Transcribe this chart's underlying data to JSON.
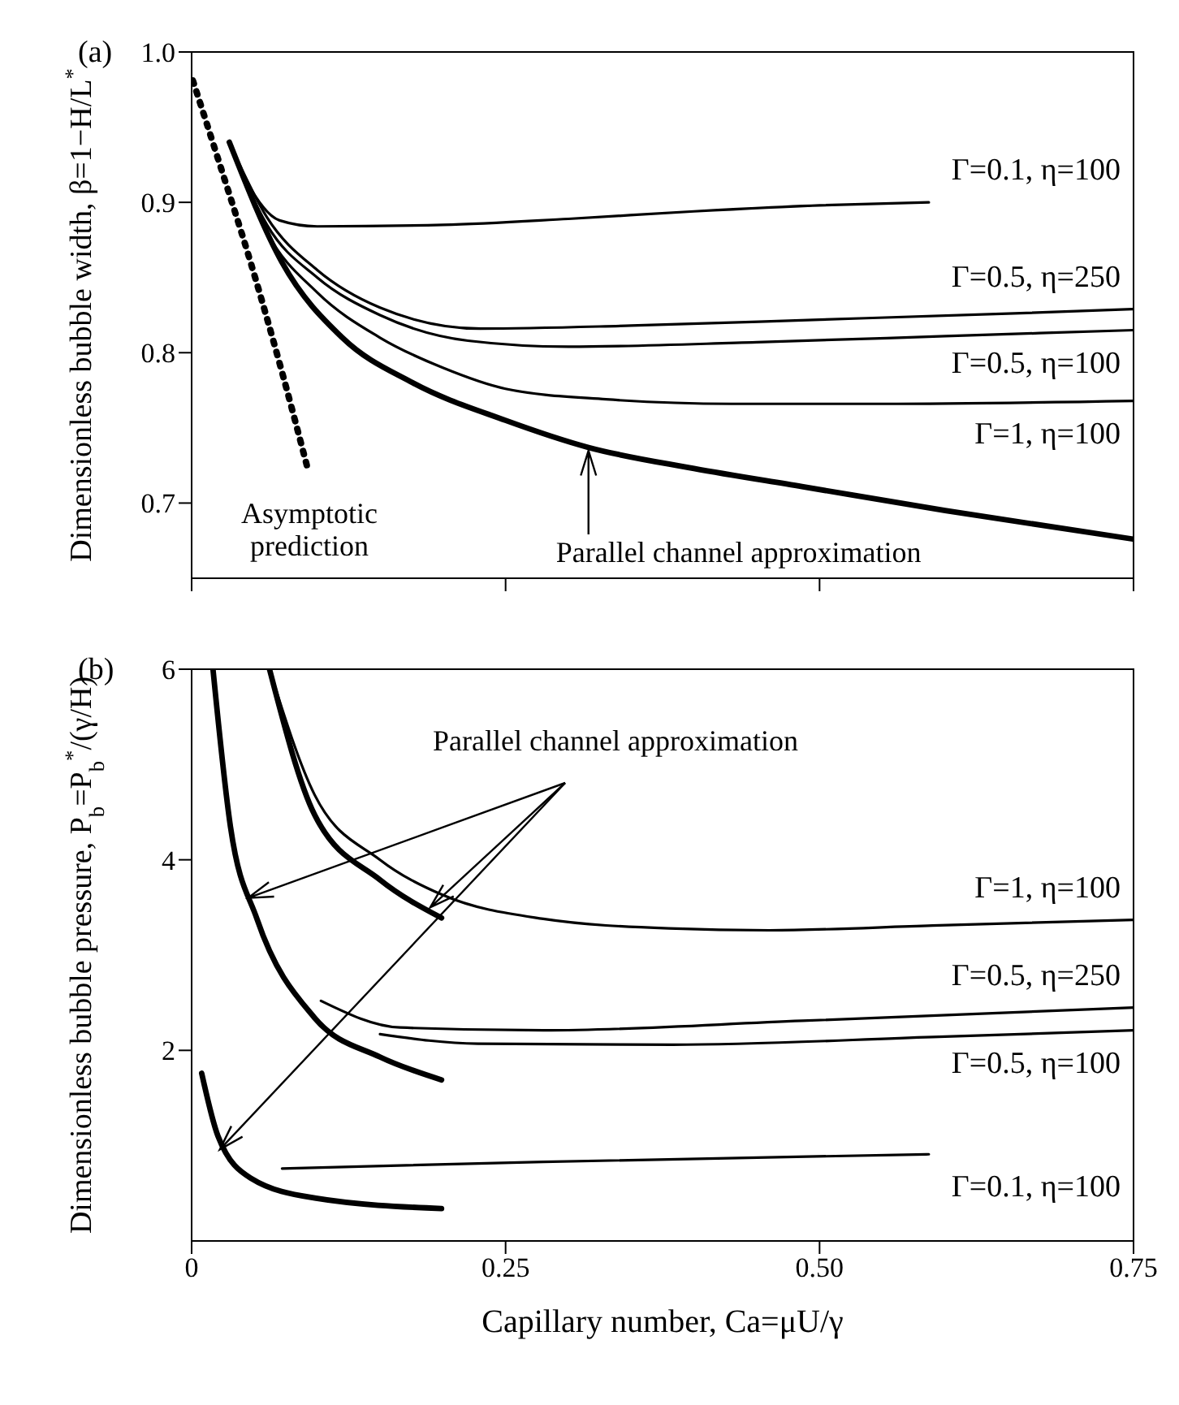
{
  "chart_data": [
    {
      "type": "line",
      "title": "(a)",
      "ylabel": "Dimensionless bubble width, β=1−H/L$^{*}$",
      "xlim": [
        0,
        0.75
      ],
      "xticks": [
        0,
        0.25,
        0.5,
        0.75
      ],
      "ylim": [
        0.65,
        1.0
      ],
      "yticks": [
        0.7,
        0.8,
        0.9,
        {
          "value": 1,
          "label": "1.0"
        }
      ],
      "tick_labels": "y",
      "marker": "none",
      "annotations": [
        "Asymptotic prediction",
        {
          "text": "Parallel channel approximation",
          "x": 0.316,
          "y": 0.737
        }
      ],
      "series": [
        {
          "name": "Γ=0.1, η=100",
          "color": "#000000",
          "x": [
            0.03,
            0.05,
            0.07,
            0.1,
            0.2,
            0.3,
            0.4,
            0.5,
            0.587
          ],
          "values": [
            0.94,
            0.905,
            0.888,
            0.884,
            0.885,
            0.889,
            0.894,
            0.898,
            0.9
          ]
        },
        {
          "name": "Γ=0.5, η=250",
          "color": "#000000",
          "x": [
            0.03,
            0.06,
            0.1,
            0.15,
            0.23,
            0.35,
            0.5,
            0.65,
            0.75
          ],
          "values": [
            0.94,
            0.89,
            0.855,
            0.83,
            0.816,
            0.818,
            0.822,
            0.826,
            0.829
          ]
        },
        {
          "name": "Γ=0.5, η=100",
          "color": "#000000",
          "x": [
            0.03,
            0.06,
            0.1,
            0.15,
            0.22,
            0.3,
            0.45,
            0.6,
            0.75
          ],
          "values": [
            0.94,
            0.885,
            0.85,
            0.825,
            0.808,
            0.804,
            0.807,
            0.811,
            0.815
          ]
        },
        {
          "name": "Γ=1, η=100",
          "color": "#000000",
          "x": [
            0.03,
            0.06,
            0.1,
            0.15,
            0.2,
            0.25,
            0.33,
            0.43,
            0.55,
            0.75
          ],
          "values": [
            0.94,
            0.88,
            0.84,
            0.81,
            0.79,
            0.776,
            0.769,
            0.766,
            0.766,
            0.768
          ]
        },
        {
          "color": "#000000",
          "x": [
            0.03,
            0.072,
            0.12,
            0.176,
            0.25,
            0.316,
            0.4,
            0.486,
            0.6,
            0.75
          ],
          "values": [
            0.94,
            0.86,
            0.81,
            0.78,
            0.755,
            0.737,
            0.723,
            0.711,
            0.695,
            0.676
          ]
        },
        {
          "color": "#000000",
          "line_style": "dotted",
          "x": [
            0.001,
            0.021,
            0.047,
            0.072,
            0.093
          ],
          "values": [
            0.981,
            0.929,
            0.86,
            0.787,
            0.721
          ]
        }
      ]
    },
    {
      "type": "line",
      "title": "(b)",
      "xlabel": "Capillary number, Ca=μU/γ",
      "ylabel": "Dimensionless bubble pressure, P$_{b}$=P$_{b}$$^{*}$/(γ/H)",
      "xlim": [
        0,
        0.75
      ],
      "xticks": [
        0,
        0.25,
        {
          "value": 0.5,
          "label": "0.50"
        },
        0.75
      ],
      "ylim": [
        0,
        6
      ],
      "yticks": [
        2,
        4,
        6
      ],
      "marker": "none",
      "annotations": [
        {
          "text": "Parallel channel approximation",
          "x": 0.19,
          "y": 3.5
        }
      ],
      "series": [
        {
          "name": "Γ=1, η=100",
          "color": "#000000",
          "x": [
            0.062,
            0.098,
            0.15,
            0.2,
            0.28,
            0.38,
            0.46,
            0.59,
            0.75
          ],
          "values": [
            6,
            4.68,
            4.0,
            3.63,
            3.38,
            3.28,
            3.26,
            3.31,
            3.37
          ]
        },
        {
          "name": "Γ=0.5, η=250",
          "color": "#000000",
          "x": [
            0.103,
            0.166,
            0.28,
            0.486,
            0.75
          ],
          "values": [
            2.52,
            2.24,
            2.21,
            2.31,
            2.45
          ]
        },
        {
          "name": "Γ=0.5, η=100",
          "color": "#000000",
          "x": [
            0.15,
            0.228,
            0.383,
            0.59,
            0.75
          ],
          "values": [
            2.17,
            2.07,
            2.06,
            2.14,
            2.21
          ]
        },
        {
          "name": "Γ=0.1, η=100",
          "color": "#000000",
          "x": [
            0.072,
            0.28,
            0.587
          ],
          "values": [
            0.76,
            0.83,
            0.91
          ]
        },
        {
          "color": "#000000",
          "x": [
            0.062,
            0.098,
            0.15,
            0.199
          ],
          "values": [
            6,
            4.47,
            3.79,
            3.39
          ]
        },
        {
          "color": "#000000",
          "x": [
            0.017,
            0.031,
            0.052,
            0.098,
            0.15,
            0.199
          ],
          "values": [
            6,
            4.34,
            3.38,
            2.34,
            1.93,
            1.69
          ]
        },
        {
          "color": "#000000",
          "x": [
            0.008,
            0.021,
            0.047,
            0.098,
            0.199
          ],
          "values": [
            1.76,
            1.1,
            0.66,
            0.45,
            0.34
          ]
        }
      ]
    }
  ]
}
